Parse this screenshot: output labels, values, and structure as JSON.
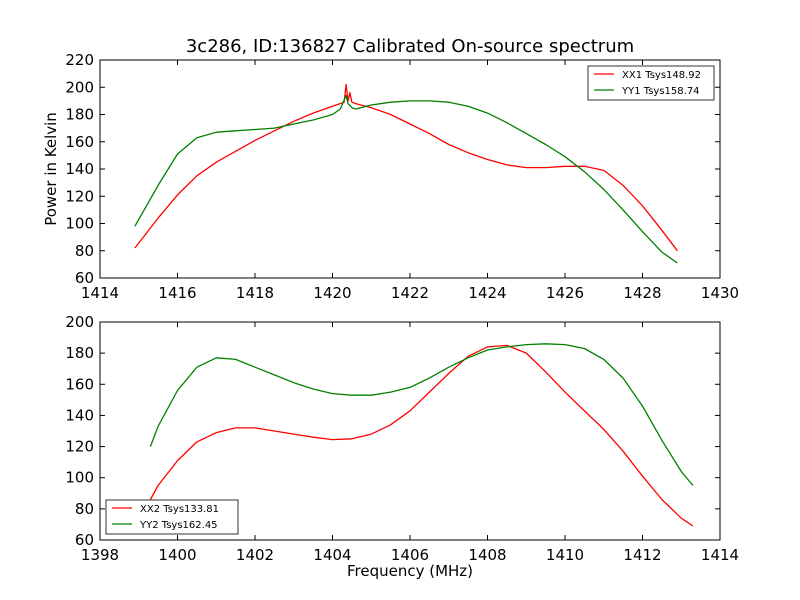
{
  "chart_data": [
    {
      "type": "line",
      "title": "3c286, ID:136827 Calibrated On-source spectrum",
      "xlabel": "",
      "ylabel": "Power in Kelvin",
      "xlim": [
        1414,
        1430
      ],
      "ylim": [
        60,
        220
      ],
      "xticks": [
        "1414",
        "1416",
        "1418",
        "1420",
        "1422",
        "1424",
        "1426",
        "1428",
        "1430"
      ],
      "yticks": [
        "60",
        "80",
        "100",
        "120",
        "140",
        "160",
        "180",
        "200",
        "220"
      ],
      "legend": "top-right",
      "series": [
        {
          "name": "XX1 Tsys148.92",
          "color": "#ff0000",
          "x": [
            1414.9,
            1415.5,
            1416.0,
            1416.5,
            1417.0,
            1417.5,
            1418.0,
            1418.5,
            1419.0,
            1419.5,
            1420.0,
            1420.3,
            1420.35,
            1420.4,
            1420.45,
            1420.5,
            1420.6,
            1421.0,
            1421.5,
            1422.0,
            1422.5,
            1423.0,
            1423.5,
            1424.0,
            1424.5,
            1425.0,
            1425.5,
            1426.0,
            1426.5,
            1427.0,
            1427.5,
            1428.0,
            1428.5,
            1428.9
          ],
          "y": [
            82,
            104,
            121,
            135,
            145,
            153,
            161,
            168,
            175,
            181,
            186,
            189,
            202,
            190,
            196,
            189,
            188,
            185,
            180,
            173,
            166,
            158,
            152,
            147,
            143,
            141,
            141,
            142,
            142,
            139,
            128,
            113,
            95,
            80
          ]
        },
        {
          "name": "YY1 Tsys158.74",
          "color": "#008000",
          "x": [
            1414.9,
            1415.5,
            1416.0,
            1416.5,
            1417.0,
            1417.5,
            1418.0,
            1418.5,
            1419.0,
            1419.5,
            1420.0,
            1420.2,
            1420.35,
            1420.4,
            1420.5,
            1420.6,
            1421.0,
            1421.5,
            1422.0,
            1422.5,
            1423.0,
            1423.5,
            1424.0,
            1424.5,
            1425.0,
            1425.5,
            1426.0,
            1426.5,
            1427.0,
            1427.5,
            1428.0,
            1428.5,
            1428.9
          ],
          "y": [
            98,
            128,
            151,
            163,
            167,
            168,
            169,
            170,
            173,
            176,
            180,
            184,
            194,
            188,
            185,
            184,
            187,
            189,
            190,
            190,
            189,
            186,
            181,
            174,
            166,
            158,
            149,
            138,
            125,
            110,
            94,
            79,
            71
          ]
        }
      ]
    },
    {
      "type": "line",
      "title": "",
      "xlabel": "Frequency (MHz)",
      "ylabel": "",
      "xlim": [
        1398,
        1414
      ],
      "ylim": [
        60,
        200
      ],
      "xticks": [
        "1398",
        "1400",
        "1402",
        "1404",
        "1406",
        "1408",
        "1410",
        "1412",
        "1414"
      ],
      "yticks": [
        "60",
        "80",
        "100",
        "120",
        "140",
        "160",
        "180",
        "200"
      ],
      "legend": "bottom-left",
      "series": [
        {
          "name": "XX2 Tsys133.81",
          "color": "#ff0000",
          "x": [
            1399.3,
            1399.5,
            1400.0,
            1400.5,
            1401.0,
            1401.5,
            1402.0,
            1402.5,
            1403.0,
            1403.5,
            1404.0,
            1404.5,
            1405.0,
            1405.5,
            1406.0,
            1406.5,
            1407.0,
            1407.5,
            1408.0,
            1408.5,
            1409.0,
            1409.5,
            1410.0,
            1410.5,
            1411.0,
            1411.5,
            1412.0,
            1412.5,
            1413.0,
            1413.3
          ],
          "y": [
            86,
            95,
            111,
            123,
            129,
            132,
            132,
            130,
            128,
            126,
            124.5,
            125,
            128,
            134,
            143,
            155,
            167,
            178,
            184,
            185,
            180,
            168,
            155,
            143,
            131,
            117,
            101,
            86,
            74,
            69
          ]
        },
        {
          "name": "YY2 Tsys162.45",
          "color": "#008000",
          "x": [
            1399.3,
            1399.5,
            1400.0,
            1400.5,
            1401.0,
            1401.5,
            1402.0,
            1402.5,
            1403.0,
            1403.5,
            1404.0,
            1404.5,
            1405.0,
            1405.5,
            1406.0,
            1406.5,
            1407.0,
            1407.5,
            1408.0,
            1408.5,
            1409.0,
            1409.5,
            1410.0,
            1410.5,
            1411.0,
            1411.5,
            1412.0,
            1412.5,
            1413.0,
            1413.3
          ],
          "y": [
            120,
            133,
            156,
            171,
            177,
            176,
            171,
            166,
            161,
            157,
            154,
            153,
            153,
            155,
            158,
            164,
            171,
            177,
            182,
            184,
            185.5,
            186,
            185.5,
            183,
            176,
            164,
            146,
            124,
            104,
            95
          ]
        }
      ]
    }
  ]
}
